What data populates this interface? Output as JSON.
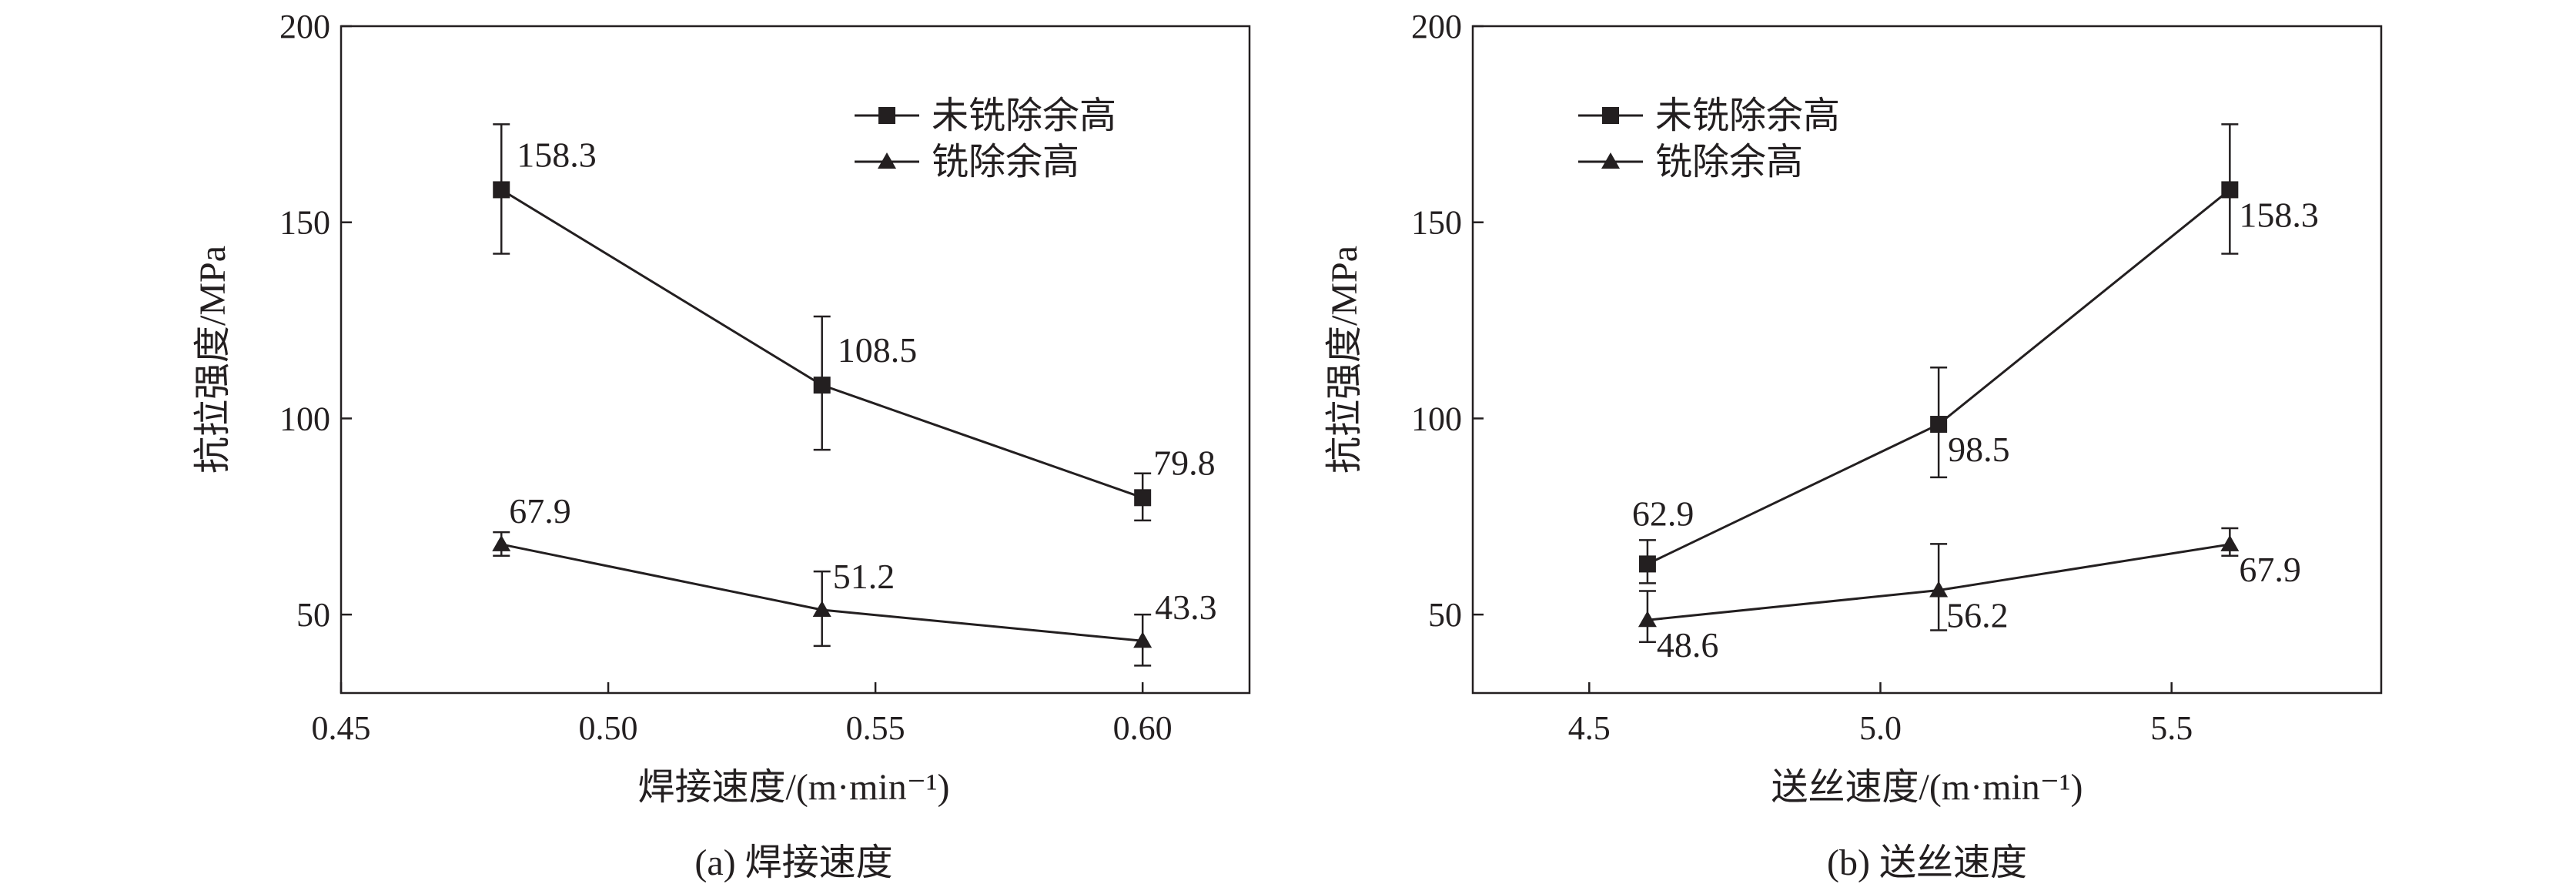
{
  "chart_data": [
    {
      "type": "line",
      "caption": "(a) 焊接速度",
      "xlabel": "焊接速度/(m·min⁻¹)",
      "ylabel": "抗拉强度/MPa",
      "xlim": [
        0.45,
        0.62
      ],
      "ylim": [
        30,
        200
      ],
      "xticks": [
        "0.45",
        "0.50",
        "0.55",
        "0.60"
      ],
      "xtick_values": [
        0.45,
        0.5,
        0.55,
        0.6
      ],
      "yticks": [
        "50",
        "100",
        "150",
        "200"
      ],
      "ytick_values": [
        50,
        100,
        150,
        200
      ],
      "legend_position": "top-right",
      "x": [
        0.48,
        0.54,
        0.6
      ],
      "series": [
        {
          "name": "未铣除余高",
          "marker": "square",
          "values": [
            158.3,
            108.5,
            79.8
          ],
          "error_low": [
            142,
            92,
            74
          ],
          "error_high": [
            175,
            126,
            86
          ],
          "labels": [
            "158.3",
            "108.5",
            "79.8"
          ]
        },
        {
          "name": "铣除余高",
          "marker": "triangle",
          "values": [
            67.9,
            51.2,
            43.3
          ],
          "error_low": [
            65,
            42,
            37
          ],
          "error_high": [
            71,
            61,
            50
          ],
          "labels": [
            "67.9",
            "51.2",
            "43.3"
          ]
        }
      ]
    },
    {
      "type": "line",
      "caption": "(b) 送丝速度",
      "xlabel": "送丝速度/(m·min⁻¹)",
      "ylabel": "抗拉强度/MPa",
      "xlim": [
        4.3,
        5.86
      ],
      "ylim": [
        30,
        200
      ],
      "xticks": [
        "4.5",
        "5.0",
        "5.5"
      ],
      "xtick_values": [
        4.5,
        5.0,
        5.5
      ],
      "yticks": [
        "50",
        "100",
        "150",
        "200"
      ],
      "ytick_values": [
        50,
        100,
        150,
        200
      ],
      "legend_position": "top-left",
      "x": [
        4.6,
        5.1,
        5.6
      ],
      "series": [
        {
          "name": "未铣除余高",
          "marker": "square",
          "values": [
            62.9,
            98.5,
            158.3
          ],
          "error_low": [
            58,
            85,
            142
          ],
          "error_high": [
            69,
            113,
            175
          ],
          "labels": [
            "62.9",
            "98.5",
            "158.3"
          ]
        },
        {
          "name": "铣除余高",
          "marker": "triangle",
          "values": [
            48.6,
            56.2,
            67.9
          ],
          "error_low": [
            43,
            46,
            65
          ],
          "error_high": [
            56,
            68,
            72
          ],
          "labels": [
            "48.6",
            "56.2",
            "67.9"
          ]
        }
      ]
    }
  ]
}
